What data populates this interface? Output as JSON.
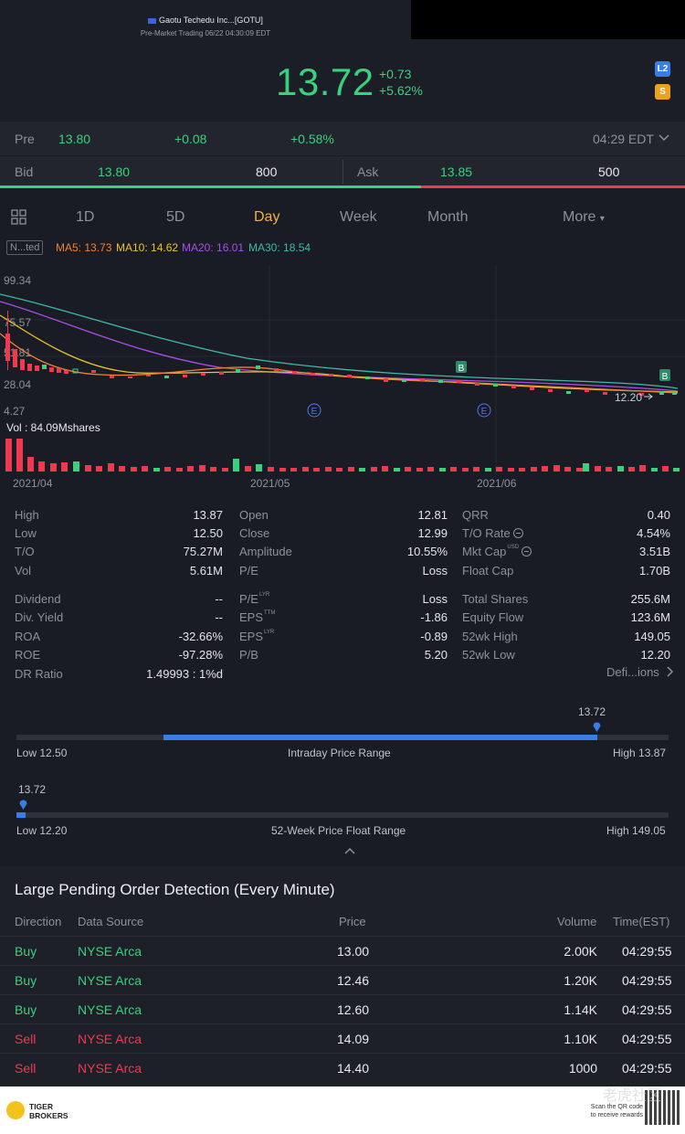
{
  "header": {
    "title": "Gaotu Techedu Inc...[GOTU]",
    "subtitle": "Pre-Market Trading 06/22 04:30:09 EDT",
    "price": "13.72",
    "change": "+0.73",
    "change_pct": "+5.62%",
    "badge_l2": "L2",
    "badge_s": "S"
  },
  "pre": {
    "label": "Pre",
    "price": "13.80",
    "change": "+0.08",
    "change_pct": "+0.58%",
    "time": "04:29 EDT"
  },
  "quote": {
    "bid_label": "Bid",
    "bid": "13.80",
    "bid_size": "800",
    "ask_label": "Ask",
    "ask": "13.85",
    "ask_size": "500",
    "bid_share": 0.615
  },
  "tabs": [
    "1D",
    "5D",
    "Day",
    "Week",
    "Month",
    "More"
  ],
  "active_tab": "Day",
  "ma": {
    "box": "N...ted",
    "ma5": "MA5: 13.73",
    "ma10": "MA10: 14.62",
    "ma20": "MA20: 16.01",
    "ma30": "MA30: 18.54",
    "colors": {
      "ma5": "#f1803a",
      "ma10": "#efc22b",
      "ma20": "#a94fe8",
      "ma30": "#3fb9a8"
    }
  },
  "chart_labels": {
    "y_top": "99.34",
    "y2": "75.57",
    "y3": "51.81",
    "y4": "28.04",
    "y_bottom": "4.27",
    "last_label": "12.20",
    "vol": "Vol  : 84.09Mshares",
    "x_labels": [
      "2021/04",
      "2021/05",
      "2021/06"
    ],
    "marker_b": "B",
    "marker_e": "E"
  },
  "chart_data": {
    "type": "candlestick",
    "title": "",
    "ylim": [
      4.27,
      99.34
    ],
    "x": [
      "2021/04",
      "2021/05",
      "2021/06"
    ],
    "ma": {
      "MA5": 13.73,
      "MA10": 14.62,
      "MA20": 16.01,
      "MA30": 18.54
    },
    "volume_total": "84.09Mshares",
    "last_price": 12.2
  },
  "stats": {
    "col1": [
      {
        "label": "High",
        "value": "13.87"
      },
      {
        "label": "Low",
        "value": "12.50"
      },
      {
        "label": "T/O",
        "value": "75.27M"
      },
      {
        "label": "Vol",
        "value": "5.61M"
      },
      {
        "label": "Dividend",
        "value": "--"
      },
      {
        "label": "Div. Yield",
        "value": "--"
      },
      {
        "label": "ROA",
        "value": "-32.66%"
      },
      {
        "label": "ROE",
        "value": "-97.28%"
      },
      {
        "label": "DR Ratio",
        "value": "1.49993 : 1%d"
      }
    ],
    "col2": [
      {
        "label": "Open",
        "value": "12.81"
      },
      {
        "label": "Close",
        "value": "12.99"
      },
      {
        "label": "Amplitude",
        "value": "10.55%"
      },
      {
        "label": "P/E",
        "value": "Loss"
      },
      {
        "label": "P/E",
        "tag": "LYR",
        "value": "Loss"
      },
      {
        "label": "EPS",
        "tag": "TTM",
        "value": "-1.86"
      },
      {
        "label": "EPS",
        "tag": "LYR",
        "value": "-0.89"
      },
      {
        "label": "P/B",
        "value": "5.20"
      }
    ],
    "col3": [
      {
        "label": "QRR",
        "value": "0.40"
      },
      {
        "label": "T/O Rate",
        "value": "4.54%"
      },
      {
        "label": "Mkt Cap",
        "tag": "USD",
        "value": "3.51B"
      },
      {
        "label": "Float Cap",
        "value": "1.70B"
      },
      {
        "label": "Total Shares",
        "value": "255.6M"
      },
      {
        "label": "Equity Flow",
        "value": "123.6M"
      },
      {
        "label": "52wk High",
        "value": "149.05"
      },
      {
        "label": "52wk Low",
        "value": "12.20"
      }
    ],
    "definitions": "Defi...ions"
  },
  "intraday": {
    "current": "13.72",
    "low": "Low 12.50",
    "title": "Intraday Price Range",
    "high": "High 13.87",
    "position": 1.0
  },
  "week52": {
    "current": "13.72",
    "low": "Low 12.20",
    "title": "52-Week Price Float Range",
    "high": "High 149.05",
    "position": 0.011
  },
  "orders": {
    "title": "Large Pending Order Detection (Every Minute)",
    "headers": [
      "Direction",
      "Data Source",
      "Price",
      "Volume",
      "Time(EST)"
    ],
    "rows": [
      {
        "dir": "Buy",
        "source": "NYSE Arca",
        "price": "13.00",
        "volume": "2.00K",
        "time": "04:29:55"
      },
      {
        "dir": "Buy",
        "source": "NYSE Arca",
        "price": "12.46",
        "volume": "1.20K",
        "time": "04:29:55"
      },
      {
        "dir": "Buy",
        "source": "NYSE Arca",
        "price": "12.60",
        "volume": "1.14K",
        "time": "04:29:55"
      },
      {
        "dir": "Sell",
        "source": "NYSE Arca",
        "price": "14.09",
        "volume": "1.10K",
        "time": "04:29:55"
      },
      {
        "dir": "Sell",
        "source": "NYSE Arca",
        "price": "14.40",
        "volume": "1000",
        "time": "04:29:55"
      }
    ]
  },
  "footer": {
    "brand_line1": "TIGER",
    "brand_line2": "BROKERS",
    "scan_line1": "Scan the QR code",
    "scan_line2": "to receive rewards",
    "watermark": "老虎社区"
  }
}
